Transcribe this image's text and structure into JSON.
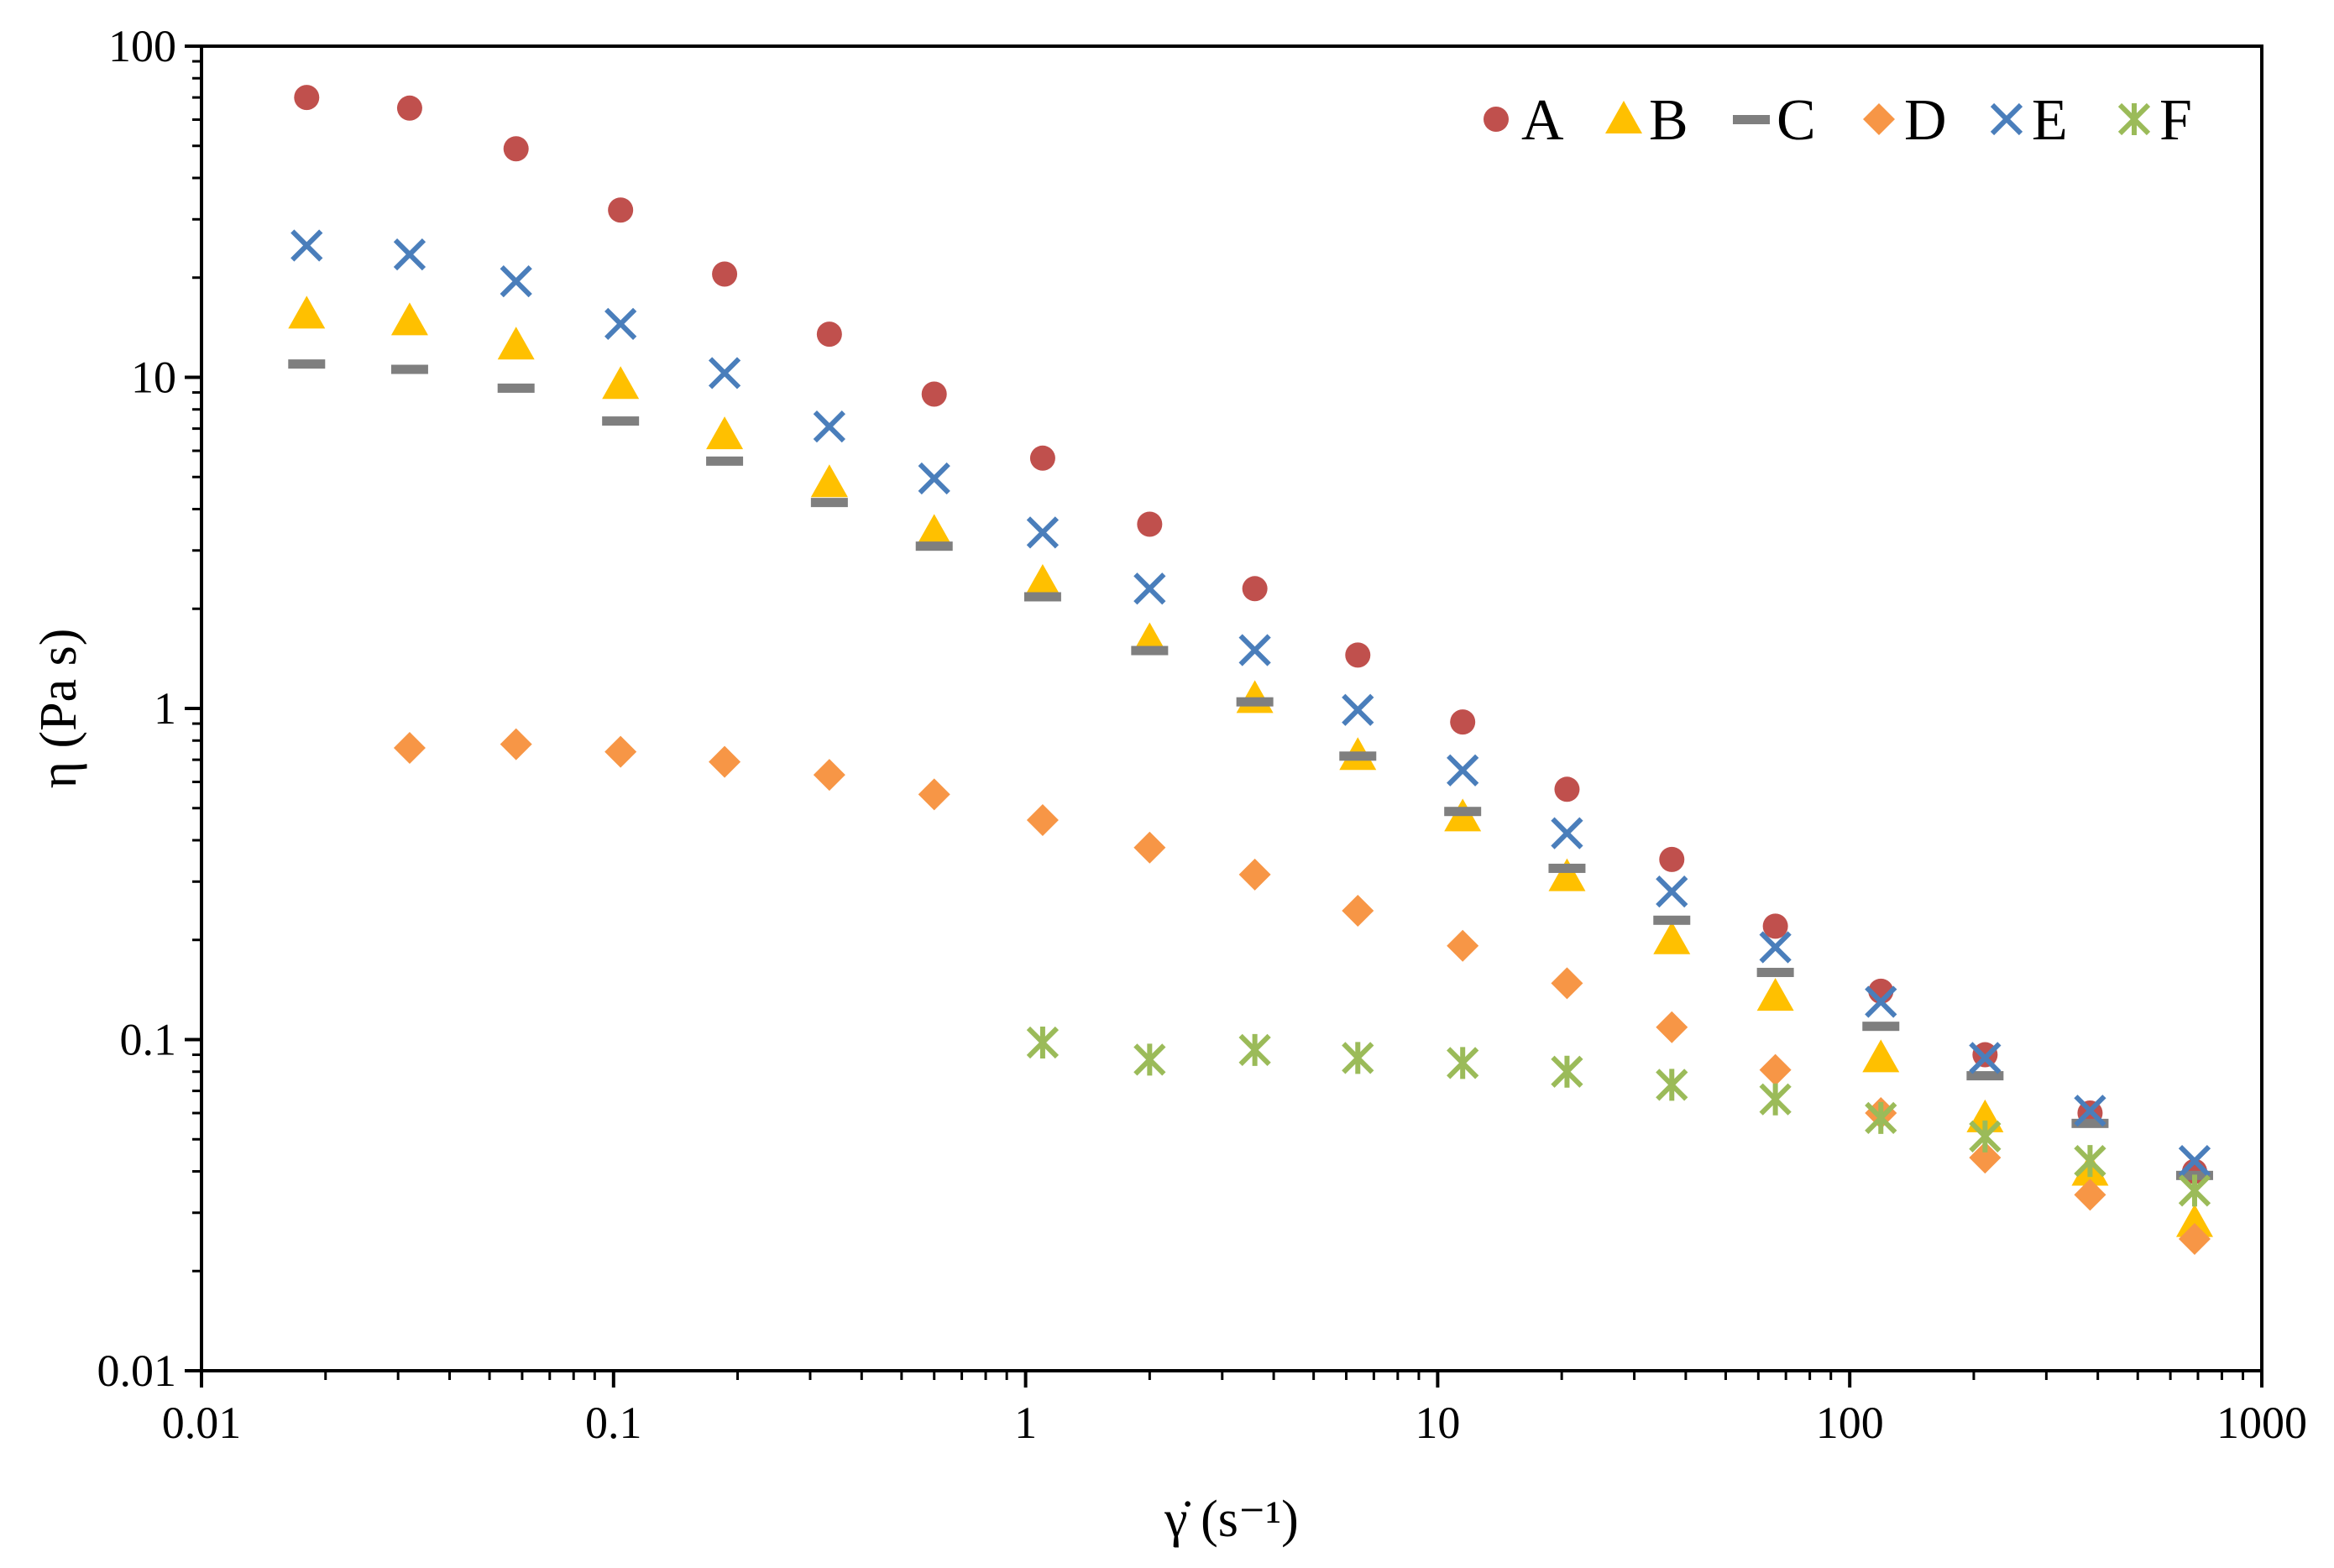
{
  "chart_data": {
    "type": "scatter",
    "title": "",
    "xlabel": "γ̇ (s⁻¹)",
    "ylabel": "η (Pa s)",
    "x_scale": "log",
    "y_scale": "log",
    "xlim": [
      0.01,
      1000
    ],
    "ylim": [
      0.01,
      100
    ],
    "x_ticks": [
      0.01,
      0.1,
      1,
      10,
      100,
      1000
    ],
    "x_tick_labels": [
      "0.01",
      "0.1",
      "1",
      "10",
      "100",
      "1000"
    ],
    "y_ticks": [
      0.01,
      0.1,
      1,
      10,
      100
    ],
    "y_tick_labels": [
      "0.01",
      "0.1",
      "1",
      "10",
      "100"
    ],
    "grid": false,
    "legend_position": "top-right",
    "series": [
      {
        "name": "A",
        "marker": "circle",
        "color": "#c0504d",
        "x": [
          0.018,
          0.032,
          0.058,
          0.104,
          0.186,
          0.334,
          0.6,
          1.1,
          2.0,
          3.6,
          6.4,
          11.5,
          20.6,
          37,
          66,
          119,
          213,
          383,
          687
        ],
        "y": [
          70,
          65,
          49,
          32,
          20.5,
          13.5,
          8.9,
          5.7,
          3.6,
          2.3,
          1.45,
          0.91,
          0.57,
          0.35,
          0.22,
          0.14,
          0.09,
          0.06,
          0.04
        ]
      },
      {
        "name": "B",
        "marker": "triangle",
        "color": "#ffc000",
        "x": [
          0.018,
          0.032,
          0.058,
          0.104,
          0.186,
          0.334,
          0.6,
          1.1,
          2.0,
          3.6,
          6.4,
          11.5,
          20.6,
          37,
          66,
          119,
          213,
          383,
          687
        ],
        "y": [
          15.5,
          14.8,
          12.5,
          9.5,
          6.7,
          4.8,
          3.4,
          2.4,
          1.6,
          1.07,
          0.72,
          0.47,
          0.31,
          0.2,
          0.135,
          0.088,
          0.058,
          0.04,
          0.028
        ]
      },
      {
        "name": "C",
        "marker": "dash",
        "color": "#7f7f7f",
        "x": [
          0.018,
          0.032,
          0.058,
          0.104,
          0.186,
          0.334,
          0.6,
          1.1,
          2.0,
          3.6,
          6.4,
          11.5,
          20.6,
          37,
          66,
          119,
          213,
          383,
          687
        ],
        "y": [
          11,
          10.6,
          9.3,
          7.4,
          5.6,
          4.2,
          3.1,
          2.18,
          1.5,
          1.05,
          0.72,
          0.49,
          0.33,
          0.23,
          0.16,
          0.11,
          0.078,
          0.056,
          0.039
        ]
      },
      {
        "name": "D",
        "marker": "diamond",
        "color": "#f79646",
        "x": [
          0.032,
          0.058,
          0.104,
          0.186,
          0.334,
          0.6,
          1.1,
          2.0,
          3.6,
          6.4,
          11.5,
          20.6,
          37,
          66,
          119,
          213,
          383,
          687
        ],
        "y": [
          0.76,
          0.78,
          0.74,
          0.69,
          0.63,
          0.55,
          0.46,
          0.38,
          0.315,
          0.245,
          0.192,
          0.148,
          0.109,
          0.081,
          0.06,
          0.044,
          0.034,
          0.025
        ]
      },
      {
        "name": "E",
        "marker": "x",
        "color": "#4a7ebb",
        "x": [
          0.018,
          0.032,
          0.058,
          0.104,
          0.186,
          0.334,
          0.6,
          1.1,
          2.0,
          3.6,
          6.4,
          11.5,
          20.6,
          37,
          66,
          119,
          213,
          383,
          687
        ],
        "y": [
          25,
          23.5,
          19.5,
          14.5,
          10.3,
          7.1,
          4.95,
          3.4,
          2.3,
          1.5,
          0.99,
          0.65,
          0.42,
          0.28,
          0.19,
          0.13,
          0.088,
          0.061,
          0.043
        ]
      },
      {
        "name": "F",
        "marker": "asterisk",
        "color": "#9bbb59",
        "x": [
          1.1,
          2.0,
          3.6,
          6.4,
          11.5,
          20.6,
          37,
          66,
          119,
          213,
          383,
          687
        ],
        "y": [
          0.098,
          0.087,
          0.093,
          0.088,
          0.085,
          0.08,
          0.073,
          0.066,
          0.058,
          0.051,
          0.043,
          0.035
        ]
      }
    ]
  }
}
